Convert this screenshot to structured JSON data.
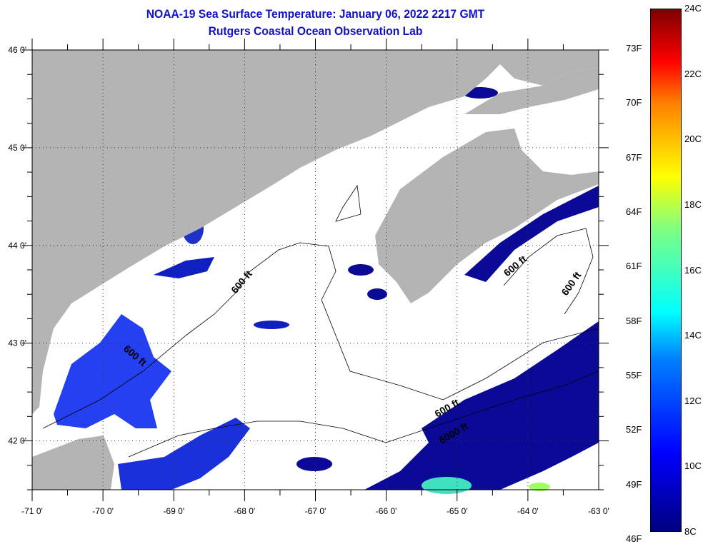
{
  "title": "NOAA-19 Sea Surface Temperature:  January 06, 2022 2217 GMT",
  "subtitle": "Rutgers Coastal Ocean Observation Lab",
  "map": {
    "lon_range": [
      -71,
      -63
    ],
    "lat_range": [
      41.5,
      46
    ],
    "x_labels": [
      {
        "lon": -71,
        "text": "-71 0'"
      },
      {
        "lon": -70,
        "text": "-70 0'"
      },
      {
        "lon": -69,
        "text": "-69 0'"
      },
      {
        "lon": -68,
        "text": "-68 0'"
      },
      {
        "lon": -67,
        "text": "-67 0'"
      },
      {
        "lon": -66,
        "text": "-66 0'"
      },
      {
        "lon": -65,
        "text": "-65 0'"
      },
      {
        "lon": -64,
        "text": "-64 0'"
      },
      {
        "lon": -63,
        "text": "-63 0'"
      }
    ],
    "y_labels": [
      {
        "lat": 46,
        "text": "46 0'"
      },
      {
        "lat": 45,
        "text": "45 0'"
      },
      {
        "lat": 44,
        "text": "44 0'"
      },
      {
        "lat": 43,
        "text": "43 0'"
      },
      {
        "lat": 42,
        "text": "42 0'"
      }
    ],
    "contour_labels": [
      "600 ft",
      "600 ft",
      "600 ft",
      "600 ft",
      "600 ft",
      "6000 ft"
    ],
    "colors": {
      "land": "#b4b4b4",
      "cold": "#0a0a96",
      "mid": "#2040ff",
      "warm": "#40e0c0"
    }
  },
  "colorbar": {
    "range_c": [
      8,
      24
    ],
    "celsius_labels": [
      {
        "v": 24,
        "text": "24C"
      },
      {
        "v": 22,
        "text": "22C"
      },
      {
        "v": 20,
        "text": "20C"
      },
      {
        "v": 18,
        "text": "18C"
      },
      {
        "v": 16,
        "text": "16C"
      },
      {
        "v": 14,
        "text": "14C"
      },
      {
        "v": 12,
        "text": "12C"
      },
      {
        "v": 10,
        "text": "10C"
      },
      {
        "v": 8,
        "text": "8C"
      }
    ],
    "fahrenheit_labels": [
      {
        "v": 73,
        "text": "73F"
      },
      {
        "v": 70,
        "text": "70F"
      },
      {
        "v": 67,
        "text": "67F"
      },
      {
        "v": 64,
        "text": "64F"
      },
      {
        "v": 61,
        "text": "61F"
      },
      {
        "v": 58,
        "text": "58F"
      },
      {
        "v": 55,
        "text": "55F"
      },
      {
        "v": 52,
        "text": "52F"
      },
      {
        "v": 49,
        "text": "49F"
      },
      {
        "v": 46,
        "text": "46F"
      }
    ]
  }
}
